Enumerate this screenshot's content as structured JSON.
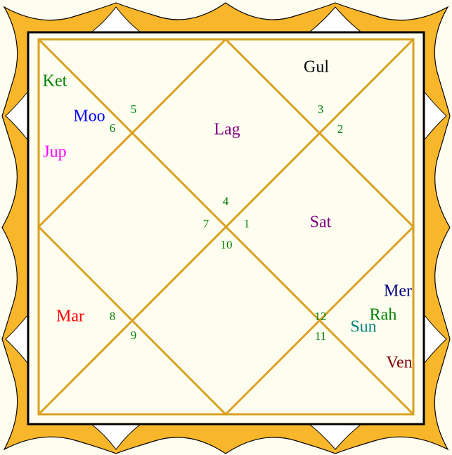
{
  "planets": [
    {
      "label": "Gul",
      "color": "#000000"
    },
    {
      "label": "Ket",
      "color": "#008000"
    },
    {
      "label": "Moo",
      "color": "#0000ff"
    },
    {
      "label": "Jup",
      "color": "#ff00ff"
    },
    {
      "label": "Lag",
      "color": "#800080"
    },
    {
      "label": "Sat",
      "color": "#800080"
    },
    {
      "label": "Mar",
      "color": "#ff0000"
    },
    {
      "label": "Mer",
      "color": "#000080"
    },
    {
      "label": "Rah",
      "color": "#008000"
    },
    {
      "label": "Sun",
      "color": "#008080"
    },
    {
      "label": "Ven",
      "color": "#800000"
    }
  ],
  "house_numbers": [
    5,
    6,
    3,
    2,
    4,
    7,
    1,
    10,
    8,
    9,
    12,
    11
  ],
  "house_number_color": "#008000"
}
